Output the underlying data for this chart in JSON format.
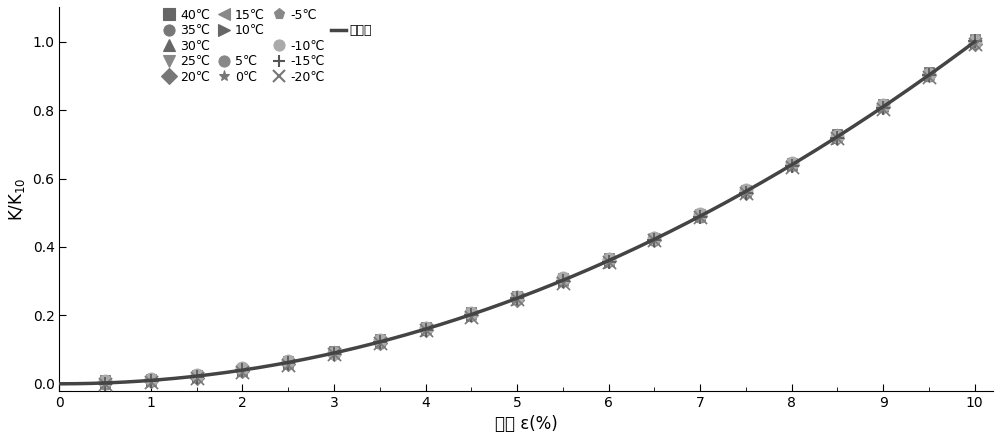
{
  "title": "",
  "xlabel": "应变 ε(%)",
  "ylabel": "K/K10",
  "xlim": [
    0,
    10.2
  ],
  "ylim": [
    -0.02,
    1.1
  ],
  "yticks": [
    0.0,
    0.2,
    0.4,
    0.6,
    0.8,
    1.0
  ],
  "xticks": [
    0,
    1,
    2,
    3,
    4,
    5,
    6,
    7,
    8,
    9,
    10
  ],
  "x_data": [
    0.5,
    1.0,
    1.5,
    2.0,
    2.5,
    3.0,
    3.5,
    4.0,
    4.5,
    5.0,
    5.5,
    6.0,
    6.5,
    7.0,
    7.5,
    8.0,
    8.5,
    9.0,
    9.5,
    10.0
  ],
  "fit_color": "#444444",
  "background_color": "#ffffff",
  "temps": [
    40,
    35,
    30,
    25,
    20,
    15,
    10,
    5,
    0,
    -5,
    -10,
    -15,
    -20
  ],
  "markers": [
    "s",
    "o",
    "^",
    "v",
    "D",
    "<",
    ">",
    "o",
    "*",
    "p",
    "o",
    "+",
    "x"
  ],
  "colors": [
    "#666666",
    "#777777",
    "#666666",
    "#888888",
    "#777777",
    "#888888",
    "#666666",
    "#888888",
    "#777777",
    "#888888",
    "#aaaaaa",
    "#555555",
    "#777777"
  ],
  "sizes": [
    50,
    55,
    55,
    55,
    55,
    50,
    55,
    70,
    90,
    60,
    90,
    90,
    90
  ],
  "offsets": [
    0.005,
    0.003,
    0.002,
    0.004,
    -0.003,
    -0.002,
    -0.004,
    0.002,
    0.001,
    -0.003,
    0.004,
    -0.001,
    -0.005
  ],
  "scatter_noise": 0.003
}
